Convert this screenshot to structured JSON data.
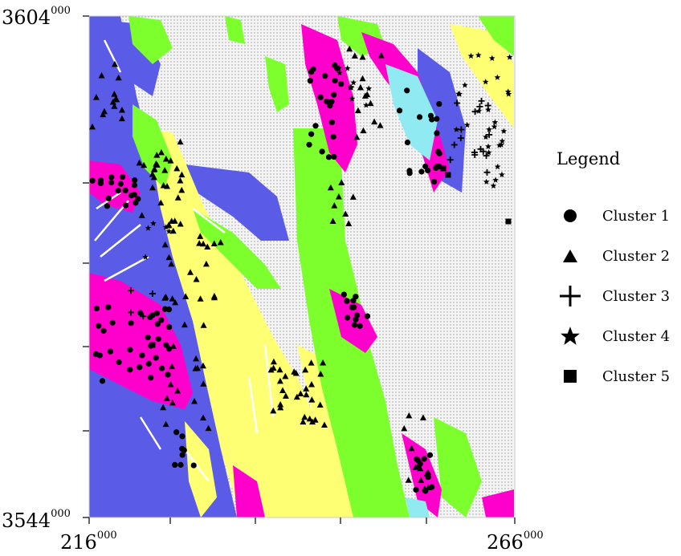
{
  "map": {
    "colors": {
      "background": "#e8e8e8",
      "magenta": "#ff00cc",
      "blue": "#5a5be6",
      "green": "#7dff2e",
      "yellow": "#ffff73",
      "cyan": "#8feaf2",
      "white_patch": "#ffffff"
    }
  },
  "axes": {
    "y_top": {
      "base": "3604",
      "exp": "000"
    },
    "y_bottom": {
      "base": "3544",
      "exp": "000"
    },
    "x_left": {
      "base": "216",
      "exp": "000"
    },
    "x_right": {
      "base": "266",
      "exp": "000"
    }
  },
  "legend": {
    "title": "Legend",
    "items": [
      {
        "label": "Cluster 1",
        "icon": "circle-icon"
      },
      {
        "label": "Cluster 2",
        "icon": "triangle-icon"
      },
      {
        "label": "Cluster 3",
        "icon": "cross-icon"
      },
      {
        "label": "Cluster 4",
        "icon": "star-icon"
      },
      {
        "label": "Cluster 5",
        "icon": "square-icon"
      }
    ]
  }
}
